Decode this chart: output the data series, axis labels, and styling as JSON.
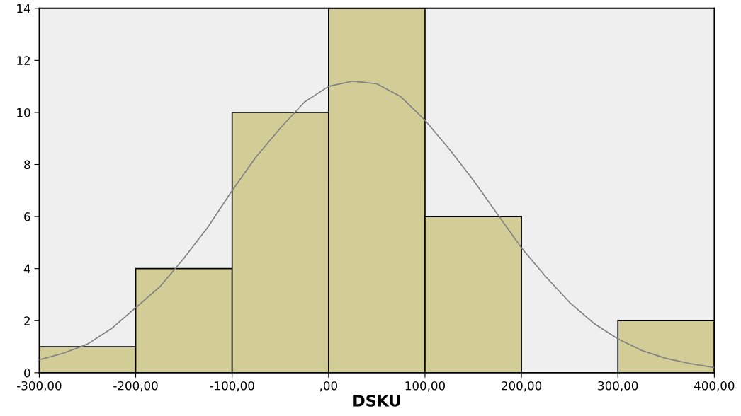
{
  "chart_data": {
    "type": "histogram",
    "xlabel": "DSKU",
    "bins": [
      -300,
      -200,
      -100,
      0,
      100,
      200,
      300,
      400
    ],
    "series": [
      {
        "type": "histogram",
        "color": "#d2cd96",
        "values": [
          1,
          4,
          10,
          14,
          6,
          0,
          2
        ]
      },
      {
        "type": "line",
        "color": "#808080",
        "x": [
          -300,
          -275,
          -250,
          -225,
          -200,
          -175,
          -150,
          -125,
          -100,
          -75,
          -50,
          -25,
          0,
          25,
          50,
          75,
          100,
          125,
          150,
          175,
          200,
          225,
          250,
          275,
          300,
          325,
          350,
          375,
          400
        ],
        "values": [
          0.5,
          0.75,
          1.1,
          1.7,
          2.5,
          3.3,
          4.4,
          5.6,
          7.0,
          8.3,
          9.4,
          10.4,
          11.0,
          11.2,
          11.1,
          10.6,
          9.7,
          8.6,
          7.4,
          6.1,
          4.8,
          3.7,
          2.7,
          1.9,
          1.3,
          0.85,
          0.55,
          0.35,
          0.2
        ]
      }
    ],
    "xlim": [
      -300,
      400
    ],
    "ylim": [
      0,
      14
    ],
    "xticks": [
      {
        "value": -300,
        "label": "-300,00"
      },
      {
        "value": -200,
        "label": "-200,00"
      },
      {
        "value": -100,
        "label": "-100,00"
      },
      {
        "value": 0,
        "label": ",00"
      },
      {
        "value": 100,
        "label": "100,00"
      },
      {
        "value": 200,
        "label": "200,00"
      },
      {
        "value": 300,
        "label": "300,00"
      },
      {
        "value": 400,
        "label": "400,00"
      }
    ],
    "yticks": [
      0,
      2,
      4,
      6,
      8,
      10,
      12,
      14
    ],
    "grid": false,
    "legend": false,
    "marker": "none",
    "line_style": "solid"
  }
}
